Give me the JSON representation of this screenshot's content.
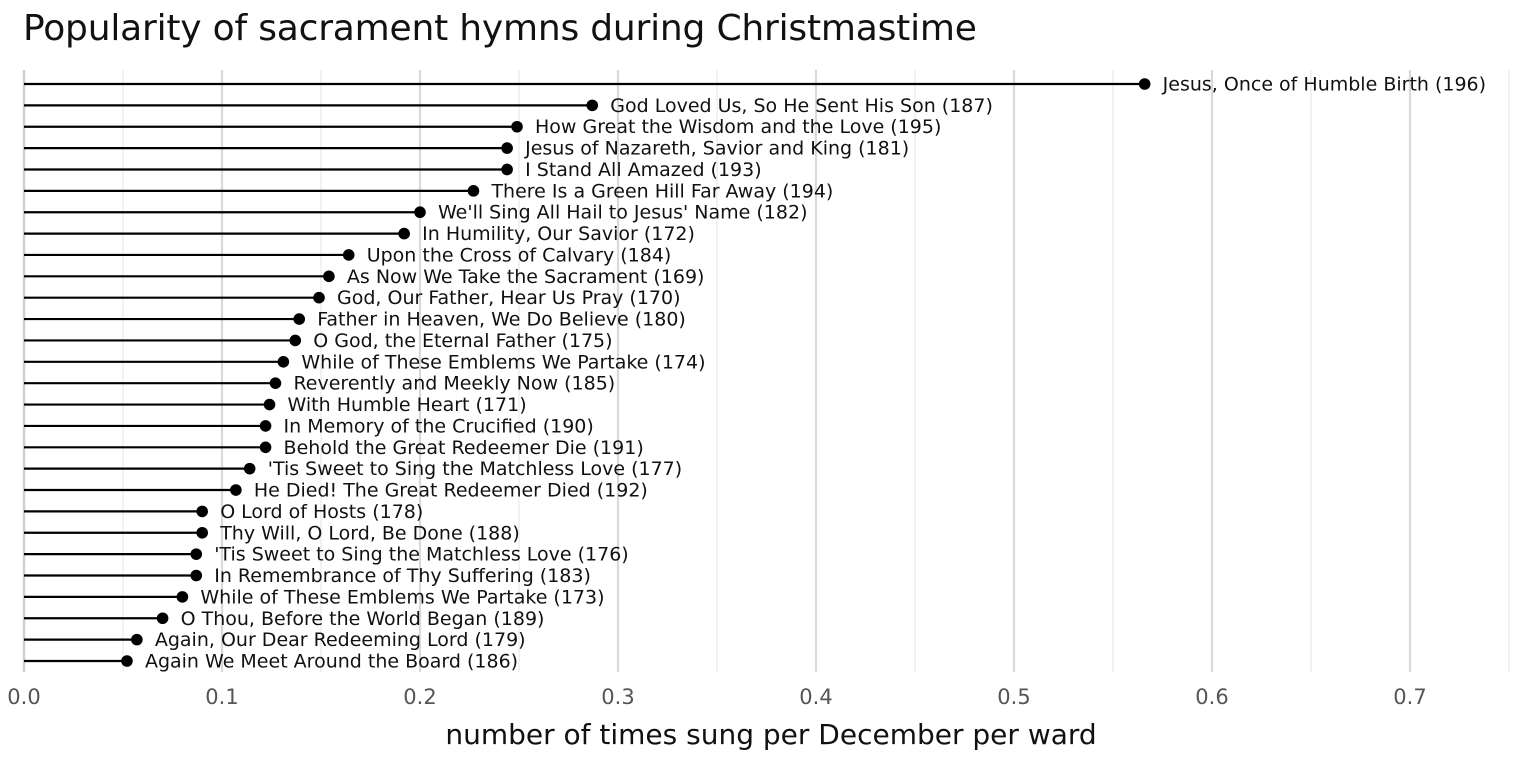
{
  "chart_data": {
    "type": "lollipop",
    "title": "Popularity of sacrament hymns during Christmastime",
    "xlabel": "number of times sung per December per ward",
    "ylabel": "",
    "xlim": [
      0,
      0.75
    ],
    "xticks": [
      0.0,
      0.1,
      0.2,
      0.3,
      0.4,
      0.5,
      0.6,
      0.7
    ],
    "xtick_labels": [
      "0.0",
      "0.1",
      "0.2",
      "0.3",
      "0.4",
      "0.5",
      "0.6",
      "0.7"
    ],
    "grid": true,
    "points": [
      {
        "label": "Jesus, Once of Humble Birth (196)",
        "value": 0.566
      },
      {
        "label": "God Loved Us, So He Sent His Son (187)",
        "value": 0.287
      },
      {
        "label": "How Great the Wisdom and the Love (195)",
        "value": 0.249
      },
      {
        "label": "Jesus of Nazareth, Savior and King (181)",
        "value": 0.244
      },
      {
        "label": "I Stand All Amazed (193)",
        "value": 0.244
      },
      {
        "label": "There Is a Green Hill Far Away (194)",
        "value": 0.227
      },
      {
        "label": "We'll Sing All Hail to Jesus' Name (182)",
        "value": 0.2
      },
      {
        "label": "In Humility, Our Savior (172)",
        "value": 0.192
      },
      {
        "label": "Upon the Cross of Calvary (184)",
        "value": 0.164
      },
      {
        "label": "As Now We Take the Sacrament (169)",
        "value": 0.154
      },
      {
        "label": "God, Our Father, Hear Us Pray (170)",
        "value": 0.149
      },
      {
        "label": "Father in Heaven, We Do Believe (180)",
        "value": 0.139
      },
      {
        "label": "O God, the Eternal Father (175)",
        "value": 0.137
      },
      {
        "label": "While of These Emblems We Partake (174)",
        "value": 0.131
      },
      {
        "label": "Reverently and Meekly Now (185)",
        "value": 0.127
      },
      {
        "label": "With Humble Heart (171)",
        "value": 0.124
      },
      {
        "label": "In Memory of the Crucified (190)",
        "value": 0.122
      },
      {
        "label": "Behold the Great Redeemer Die (191)",
        "value": 0.122
      },
      {
        "label": "'Tis Sweet to Sing the Matchless Love (177)",
        "value": 0.114
      },
      {
        "label": "He Died! The Great Redeemer Died (192)",
        "value": 0.107
      },
      {
        "label": "O Lord of Hosts (178)",
        "value": 0.09
      },
      {
        "label": "Thy Will, O Lord, Be Done (188)",
        "value": 0.09
      },
      {
        "label": "'Tis Sweet to Sing the Matchless Love (176)",
        "value": 0.087
      },
      {
        "label": "In Remembrance of Thy Suffering (183)",
        "value": 0.087
      },
      {
        "label": "While of These Emblems We Partake (173)",
        "value": 0.08
      },
      {
        "label": "O Thou, Before the World Began (189)",
        "value": 0.07
      },
      {
        "label": "Again, Our Dear Redeeming Lord (179)",
        "value": 0.057
      },
      {
        "label": "Again We Meet Around the Board (186)",
        "value": 0.052
      }
    ]
  }
}
